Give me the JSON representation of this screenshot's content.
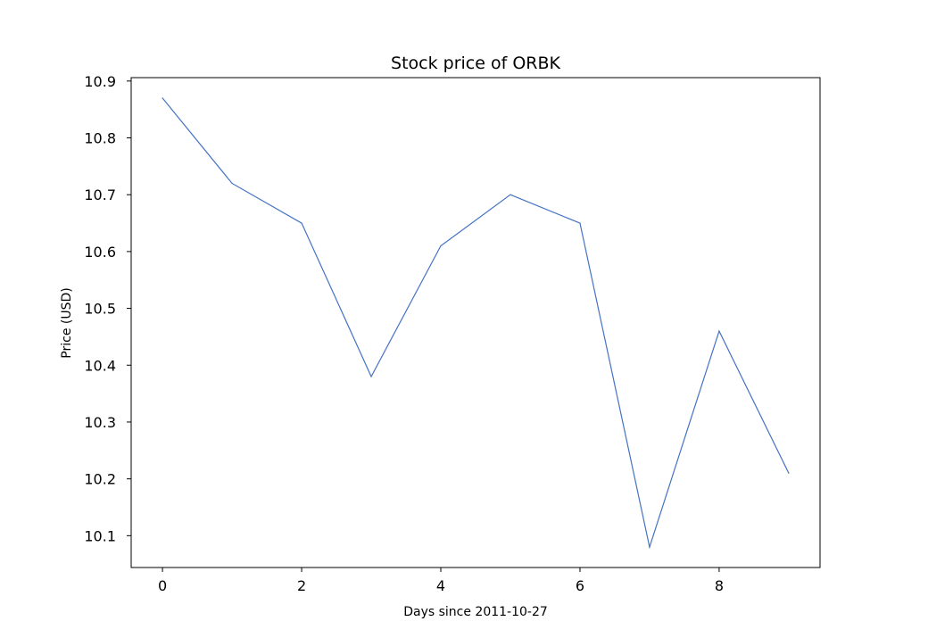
{
  "chart_data": {
    "type": "line",
    "title": "Stock price of ORBK",
    "xlabel": "Days since 2011-10-27",
    "ylabel": "Price (USD)",
    "x": [
      0,
      1,
      2,
      3,
      4,
      5,
      6,
      7,
      8,
      9
    ],
    "series": [
      {
        "values": [
          10.87,
          10.72,
          10.65,
          10.38,
          10.61,
          10.7,
          10.65,
          10.08,
          10.46,
          10.21
        ],
        "color": "#4472c4"
      }
    ],
    "xlim": [
      -0.45,
      9.45
    ],
    "ylim": [
      10.044,
      10.906
    ],
    "xticks": [
      0,
      2,
      4,
      6,
      8
    ],
    "xtick_labels": [
      "0",
      "2",
      "4",
      "6",
      "8"
    ],
    "yticks": [
      10.1,
      10.2,
      10.3,
      10.4,
      10.5,
      10.6,
      10.7,
      10.8,
      10.9
    ],
    "ytick_labels": [
      "10.1",
      "10.2",
      "10.3",
      "10.4",
      "10.5",
      "10.6",
      "10.7",
      "10.8",
      "10.9"
    ],
    "grid": false,
    "legend": false
  }
}
